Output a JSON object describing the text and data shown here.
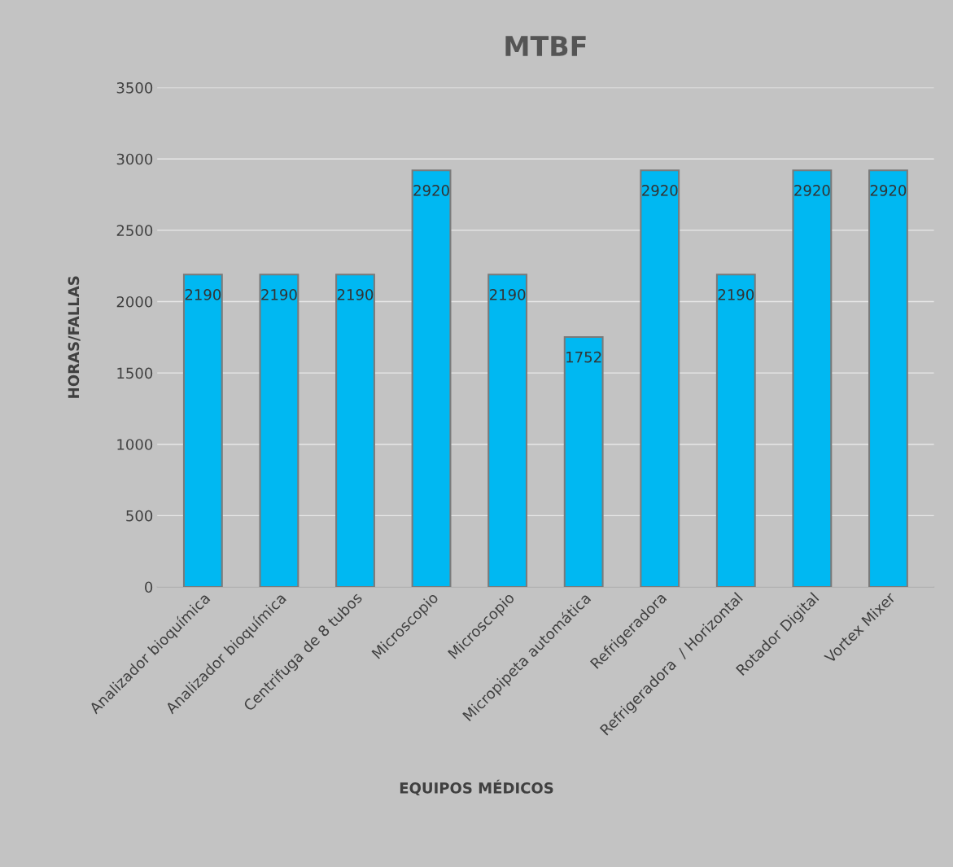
{
  "chart_data": {
    "type": "bar",
    "title": "MTBF",
    "xlabel": "EQUIPOS MÉDICOS",
    "ylabel": "HORAS/FALLAS",
    "categories": [
      "Analizador bioquímica",
      "Analizador bioquímica",
      "Centrifuga de 8 tubos",
      "Microscopio",
      "Microscopio",
      "Micropipeta automática",
      "Refrigeradora",
      "Refrigeradora  / Horizontal",
      "Rotador Digital",
      "Vortex Mixer"
    ],
    "values": [
      2190,
      2190,
      2190,
      2920,
      2190,
      1752,
      2920,
      2190,
      2920,
      2920
    ],
    "color": "#00b8f2",
    "ylim": [
      0,
      3500
    ],
    "yticks": [
      0,
      500,
      1000,
      1500,
      2000,
      2500,
      3000,
      3500
    ],
    "grid": "y",
    "data_labels": true
  }
}
